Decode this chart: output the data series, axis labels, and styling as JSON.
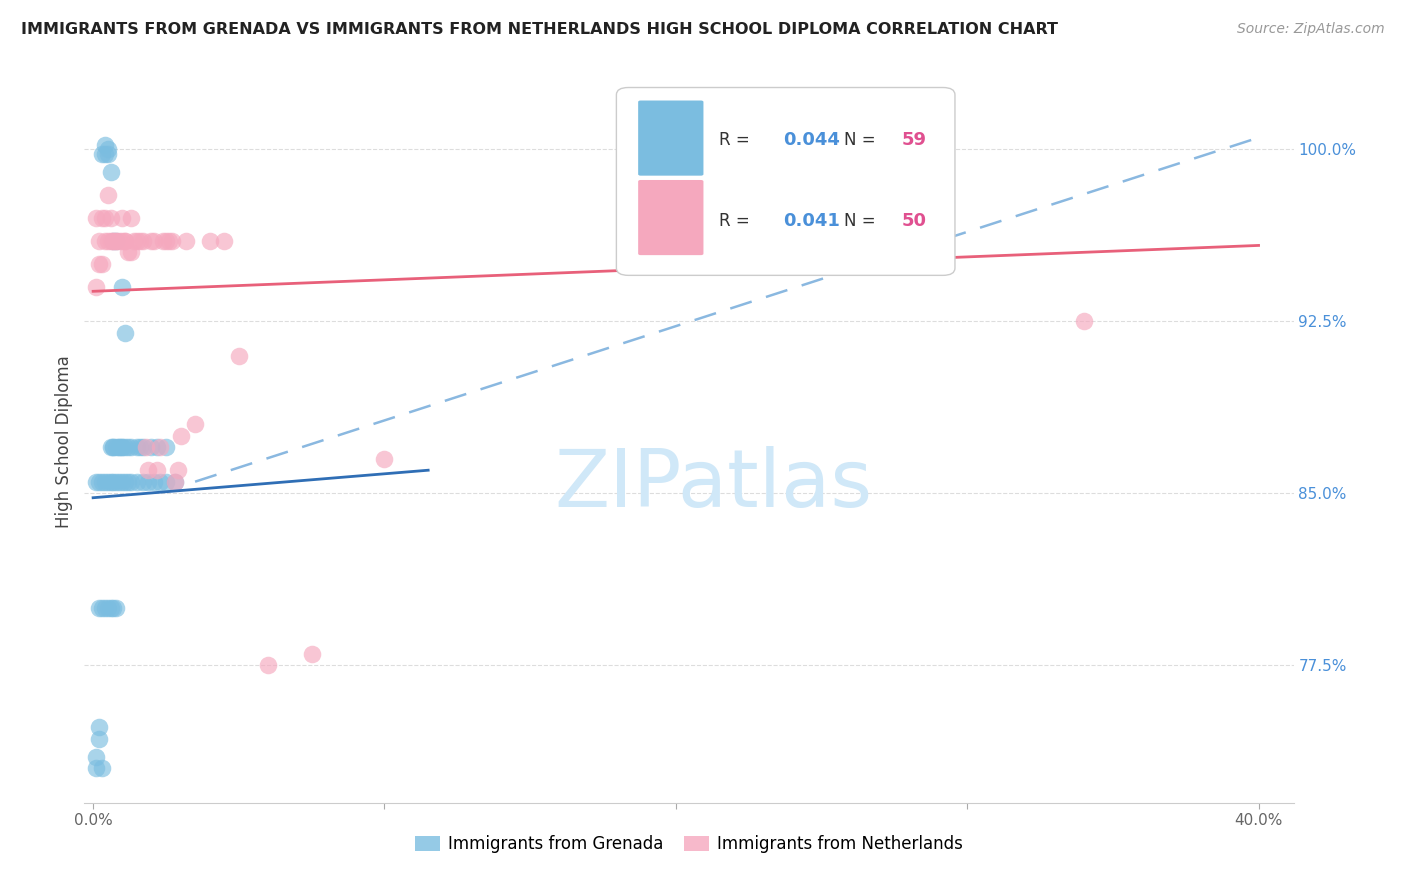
{
  "title": "IMMIGRANTS FROM GRENADA VS IMMIGRANTS FROM NETHERLANDS HIGH SCHOOL DIPLOMA CORRELATION CHART",
  "source": "Source: ZipAtlas.com",
  "ylabel": "High School Diploma",
  "blue_color": "#7bbde0",
  "pink_color": "#f5a8be",
  "blue_line_color": "#2f6eb5",
  "pink_line_color": "#e8607a",
  "dashed_line_color": "#8ab8e0",
  "watermark_color": "#d0e8f8",
  "grenada_x": [
    0.001,
    0.002,
    0.002,
    0.003,
    0.004,
    0.004,
    0.005,
    0.005,
    0.006,
    0.006,
    0.007,
    0.007,
    0.007,
    0.008,
    0.008,
    0.009,
    0.009,
    0.01,
    0.01,
    0.01,
    0.011,
    0.011,
    0.012,
    0.013,
    0.015,
    0.016,
    0.017,
    0.02,
    0.022,
    0.025,
    0.001,
    0.002,
    0.003,
    0.004,
    0.005,
    0.006,
    0.007,
    0.008,
    0.009,
    0.01,
    0.011,
    0.012,
    0.013,
    0.015,
    0.017,
    0.019,
    0.021,
    0.023,
    0.025,
    0.028,
    0.002,
    0.003,
    0.004,
    0.005,
    0.006,
    0.007,
    0.008,
    0.001,
    0.003
  ],
  "grenada_y": [
    0.735,
    0.743,
    0.748,
    0.998,
    1.002,
    0.998,
    0.998,
    1.0,
    0.87,
    0.99,
    0.87,
    0.96,
    0.87,
    0.96,
    0.87,
    0.87,
    0.87,
    0.94,
    0.87,
    0.87,
    0.87,
    0.92,
    0.87,
    0.87,
    0.87,
    0.87,
    0.87,
    0.87,
    0.87,
    0.87,
    0.855,
    0.855,
    0.855,
    0.855,
    0.855,
    0.855,
    0.855,
    0.855,
    0.855,
    0.855,
    0.855,
    0.855,
    0.855,
    0.855,
    0.855,
    0.855,
    0.855,
    0.855,
    0.855,
    0.855,
    0.8,
    0.8,
    0.8,
    0.8,
    0.8,
    0.8,
    0.8,
    0.73,
    0.73
  ],
  "netherlands_x": [
    0.001,
    0.001,
    0.002,
    0.002,
    0.003,
    0.003,
    0.004,
    0.004,
    0.005,
    0.005,
    0.006,
    0.006,
    0.007,
    0.007,
    0.008,
    0.008,
    0.009,
    0.01,
    0.01,
    0.011,
    0.011,
    0.012,
    0.013,
    0.013,
    0.014,
    0.015,
    0.016,
    0.017,
    0.018,
    0.019,
    0.02,
    0.021,
    0.022,
    0.023,
    0.024,
    0.025,
    0.026,
    0.027,
    0.028,
    0.029,
    0.03,
    0.032,
    0.035,
    0.04,
    0.045,
    0.05,
    0.06,
    0.075,
    0.1,
    0.34
  ],
  "netherlands_y": [
    0.94,
    0.97,
    0.95,
    0.96,
    0.95,
    0.97,
    0.96,
    0.97,
    0.96,
    0.98,
    0.96,
    0.97,
    0.96,
    0.96,
    0.96,
    0.96,
    0.96,
    0.97,
    0.96,
    0.96,
    0.96,
    0.955,
    0.955,
    0.97,
    0.96,
    0.96,
    0.96,
    0.96,
    0.87,
    0.86,
    0.96,
    0.96,
    0.86,
    0.87,
    0.96,
    0.96,
    0.96,
    0.96,
    0.855,
    0.86,
    0.875,
    0.96,
    0.88,
    0.96,
    0.96,
    0.91,
    0.775,
    0.78,
    0.865,
    0.925
  ],
  "xlim_min": 0.0,
  "xlim_max": 0.4,
  "ylim_min": 0.715,
  "ylim_max": 1.03,
  "ytick_vals": [
    0.775,
    0.85,
    0.925,
    1.0
  ],
  "ytick_labels": [
    "77.5%",
    "85.0%",
    "92.5%",
    "100.0%"
  ],
  "xtick_vals": [
    0.0,
    0.1,
    0.2,
    0.3,
    0.4
  ],
  "xtick_labels": [
    "0.0%",
    "",
    "",
    "",
    "40.0%"
  ],
  "pink_line_x0": 0.0,
  "pink_line_y0": 0.938,
  "pink_line_x1": 0.4,
  "pink_line_y1": 0.958,
  "blue_line_x0": 0.0,
  "blue_line_y0": 0.848,
  "blue_line_x1": 0.115,
  "blue_line_y1": 0.86,
  "dash_line_x0": 0.035,
  "dash_line_y0": 0.855,
  "dash_line_x1": 0.4,
  "dash_line_y1": 1.005
}
